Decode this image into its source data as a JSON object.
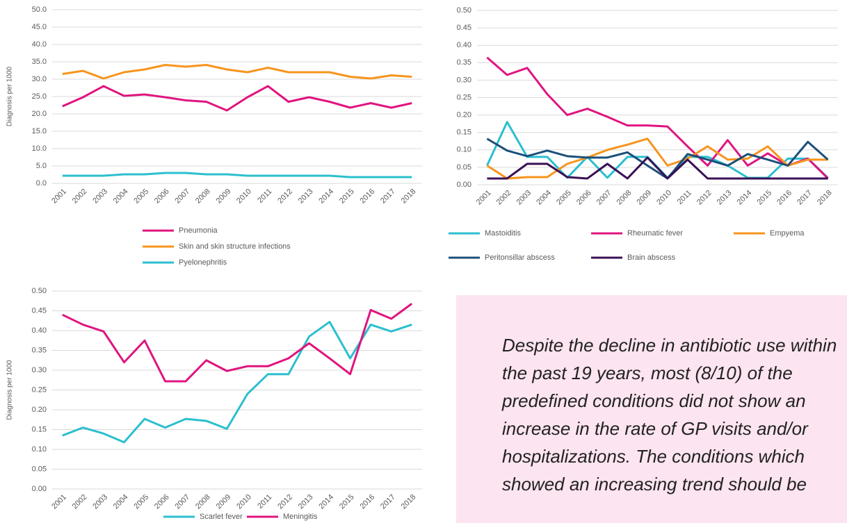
{
  "chart_data": [
    {
      "type": "line",
      "y_label": "Diagnosis per 1000",
      "categories": [
        "2001",
        "2002",
        "2003",
        "2004",
        "2005",
        "2006",
        "2007",
        "2008",
        "2009",
        "2010",
        "2011",
        "2012",
        "2013",
        "2014",
        "2015",
        "2016",
        "2017",
        "2018"
      ],
      "ylim": [
        0,
        50
      ],
      "yticks": [
        {
          "value": 0,
          "label": "0.0"
        },
        {
          "value": 5,
          "label": "5.0"
        },
        {
          "value": 10,
          "label": "10.0"
        },
        {
          "value": 15,
          "label": "15.0"
        },
        {
          "value": 20,
          "label": "20.0"
        },
        {
          "value": 25,
          "label": "25.0"
        },
        {
          "value": 30,
          "label": "30.0"
        },
        {
          "value": 35,
          "label": "35.0"
        },
        {
          "value": 40,
          "label": "40.0"
        },
        {
          "value": 45,
          "label": "45.0"
        },
        {
          "value": 50,
          "label": "50.0"
        }
      ],
      "grid": true,
      "legend": "bottom",
      "series": [
        {
          "name": "Pneumonia",
          "color": "#e0147f",
          "values": [
            22.2,
            24.8,
            28.0,
            25.2,
            25.6,
            24.8,
            23.9,
            23.5,
            21.0,
            24.8,
            28.0,
            23.5,
            24.8,
            23.5,
            21.8,
            23.1,
            21.8,
            23.1
          ]
        },
        {
          "name": "Skin and skin structure infections",
          "color": "#f7941d",
          "values": [
            31.5,
            32.4,
            30.2,
            32.0,
            32.8,
            34.1,
            33.6,
            34.1,
            32.8,
            32.0,
            33.3,
            32.0,
            32.0,
            32.0,
            30.7,
            30.2,
            31.1,
            30.7
          ]
        },
        {
          "name": "Pyelonephritis",
          "color": "#2bbfcf",
          "values": [
            2.2,
            2.2,
            2.2,
            2.6,
            2.6,
            3.0,
            3.0,
            2.6,
            2.6,
            2.2,
            2.2,
            2.2,
            2.2,
            2.2,
            1.8,
            1.8,
            1.8,
            1.8
          ]
        }
      ]
    },
    {
      "type": "line",
      "categories": [
        "2001",
        "2002",
        "2003",
        "2004",
        "2005",
        "2006",
        "2007",
        "2008",
        "2009",
        "2010",
        "2011",
        "2012",
        "2013",
        "2014",
        "2015",
        "2016",
        "2017",
        "2018"
      ],
      "ylim": [
        0,
        0.5
      ],
      "yticks": [
        {
          "value": 0,
          "label": "0.00"
        },
        {
          "value": 0.05,
          "label": "0.05"
        },
        {
          "value": 0.1,
          "label": "0.10"
        },
        {
          "value": 0.15,
          "label": "0.15"
        },
        {
          "value": 0.2,
          "label": "0.20"
        },
        {
          "value": 0.25,
          "label": "0.25"
        },
        {
          "value": 0.3,
          "label": "0.30"
        },
        {
          "value": 0.35,
          "label": "0.35"
        },
        {
          "value": 0.4,
          "label": "0.40"
        },
        {
          "value": 0.45,
          "label": "0.45"
        },
        {
          "value": 0.5,
          "label": "0.50"
        }
      ],
      "grid": true,
      "legend": "bottom",
      "series": [
        {
          "name": "Mastoiditis",
          "color": "#2bbfcf",
          "values": [
            0.055,
            0.18,
            0.08,
            0.08,
            0.02,
            0.08,
            0.02,
            0.08,
            0.08,
            0.02,
            0.08,
            0.08,
            0.055,
            0.02,
            0.02,
            0.075,
            0.075,
            0.02
          ]
        },
        {
          "name": "Rheumatic fever",
          "color": "#e0147f",
          "values": [
            0.365,
            0.315,
            0.335,
            0.26,
            0.2,
            0.218,
            0.195,
            0.17,
            0.17,
            0.167,
            0.11,
            0.055,
            0.128,
            0.055,
            0.09,
            0.055,
            0.075,
            0.018
          ]
        },
        {
          "name": "Empyema",
          "color": "#f7941d",
          "values": [
            0.055,
            0.018,
            0.022,
            0.022,
            0.06,
            0.078,
            0.1,
            0.115,
            0.132,
            0.055,
            0.075,
            0.11,
            0.072,
            0.075,
            0.11,
            0.055,
            0.072,
            0.072
          ]
        },
        {
          "name": "Peritonsillar abscess",
          "color": "#1b4f7a",
          "values": [
            0.132,
            0.098,
            0.082,
            0.098,
            0.082,
            0.078,
            0.078,
            0.093,
            0.055,
            0.018,
            0.088,
            0.072,
            0.055,
            0.088,
            0.072,
            0.055,
            0.123,
            0.072
          ]
        },
        {
          "name": "Brain abscess",
          "color": "#3b1055",
          "values": [
            0.018,
            0.018,
            0.06,
            0.06,
            0.022,
            0.018,
            0.06,
            0.018,
            0.078,
            0.018,
            0.072,
            0.018,
            0.018,
            0.018,
            0.018,
            0.018,
            0.018,
            0.018
          ]
        }
      ]
    },
    {
      "type": "line",
      "y_label": "Diagnosis per 1000",
      "categories": [
        "2001",
        "2002",
        "2003",
        "2004",
        "2005",
        "2006",
        "2007",
        "2008",
        "2009",
        "2010",
        "2011",
        "2012",
        "2013",
        "2014",
        "2015",
        "2016",
        "2017",
        "2018"
      ],
      "ylim": [
        0,
        0.5
      ],
      "yticks": [
        {
          "value": 0,
          "label": "0.00"
        },
        {
          "value": 0.05,
          "label": "0.05"
        },
        {
          "value": 0.1,
          "label": "0.10"
        },
        {
          "value": 0.15,
          "label": "0.15"
        },
        {
          "value": 0.2,
          "label": "0.20"
        },
        {
          "value": 0.25,
          "label": "0.25"
        },
        {
          "value": 0.3,
          "label": "0.30"
        },
        {
          "value": 0.35,
          "label": "0.35"
        },
        {
          "value": 0.4,
          "label": "0.40"
        },
        {
          "value": 0.45,
          "label": "0.45"
        },
        {
          "value": 0.5,
          "label": "0.50"
        }
      ],
      "grid": true,
      "legend": "bottom",
      "series": [
        {
          "name": "Scarlet fever",
          "color": "#2bbfcf",
          "values": [
            0.135,
            0.155,
            0.14,
            0.118,
            0.177,
            0.155,
            0.177,
            0.172,
            0.152,
            0.24,
            0.29,
            0.29,
            0.385,
            0.422,
            0.33,
            0.415,
            0.398,
            0.415
          ]
        },
        {
          "name": "Meningitis",
          "color": "#e0147f",
          "values": [
            0.44,
            0.415,
            0.398,
            0.32,
            0.375,
            0.272,
            0.272,
            0.325,
            0.298,
            0.31,
            0.31,
            0.33,
            0.368,
            0.33,
            0.29,
            0.452,
            0.43,
            0.468
          ]
        }
      ]
    }
  ],
  "note": "Despite the decline in antibiotic use within the past 19 years, most (8/10) of the predefined conditions did not show an increase in the rate of GP visits and/or hospitalizations. The conditions which showed an increasing trend should be"
}
